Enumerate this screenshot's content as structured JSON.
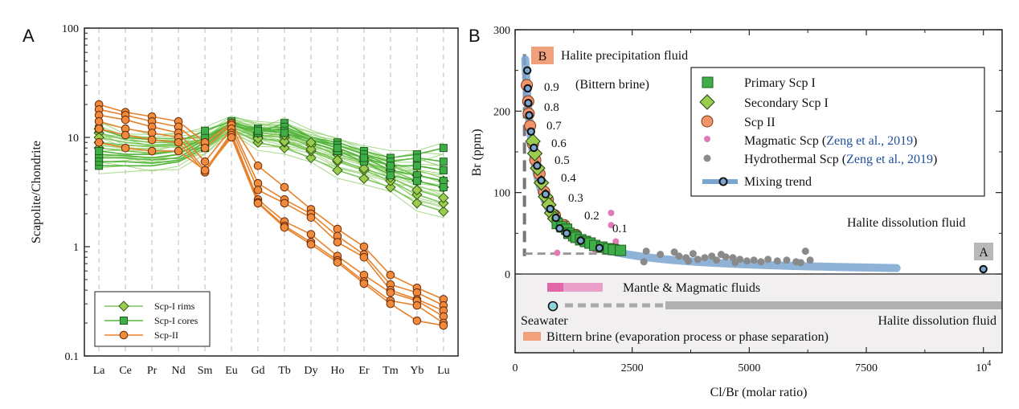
{
  "colors": {
    "green_dark": "#2e8a2e",
    "green_line": "#6cbf46",
    "green_fill": "#3fae49",
    "diamond_fill": "#9ccc4f",
    "orange_line": "#e8822b",
    "orange_fill": "#f08a3c",
    "scp2_fill": "#f2936b",
    "magmatic": "#e07ab8",
    "hydrothermal": "#8a8a8a",
    "mixing": "#7aa6cf",
    "bittern_bar": "#f0a07a",
    "dissolution_bar": "#b0b0b0",
    "panel_bg": "#f2eff1",
    "link_blue": "#1f4e9c"
  },
  "chart_data": [
    {
      "panel": "A",
      "type": "line",
      "ylabel": "Scapolite/Chondrite",
      "yscale": "log",
      "ylim": [
        0.1,
        100
      ],
      "yticks": [
        "0.1",
        "1",
        "10",
        "100"
      ],
      "categories": [
        "La",
        "Ce",
        "Pr",
        "Nd",
        "Sm",
        "Eu",
        "Gd",
        "Tb",
        "Dy",
        "Ho",
        "Er",
        "Tm",
        "Yb",
        "Lu"
      ],
      "grid": "vertical dashed",
      "legend_position": "bottom-left",
      "series": [
        {
          "name": "Scp-I rims",
          "marker": "diamond",
          "values": [
            [
              8,
              7.5,
              7.2,
              7.5,
              8,
              12,
              9,
              8,
              6.5,
              5,
              4.2,
              3.5,
              2.5,
              2.1
            ],
            [
              9,
              8.5,
              8.2,
              8.5,
              9,
              12.5,
              10,
              9,
              7.5,
              6,
              5,
              4,
              3,
              2.5
            ],
            [
              11,
              9.5,
              9,
              9,
              9.5,
              13,
              10.5,
              10,
              8.5,
              7,
              6,
              5,
              4,
              3.5
            ],
            [
              10,
              9,
              8.5,
              8.8,
              9,
              12.5,
              9.8,
              9.2,
              7.8,
              6.2,
              5.2,
              4.3,
              3.3,
              2.8
            ],
            [
              12,
              10.5,
              9.8,
              9.8,
              10,
              13,
              11,
              10.5,
              9,
              7.5,
              6.5,
              5.5,
              4.5,
              4
            ]
          ]
        },
        {
          "name": "Scp-I cores",
          "marker": "square",
          "values": [
            [
              5.5,
              5.5,
              5.5,
              6,
              8,
              13,
              11,
              13.5,
              10,
              9,
              7.5,
              6.5,
              7,
              8
            ],
            [
              6,
              6,
              5.8,
              6.2,
              8.5,
              13,
              11.5,
              12,
              9.5,
              8.5,
              7,
              6,
              6.5,
              6
            ],
            [
              6.5,
              6.5,
              6.2,
              6.5,
              9,
              13.5,
              12,
              12.5,
              10,
              8.5,
              7,
              5.5,
              5.5,
              5
            ],
            [
              7,
              6.8,
              6.5,
              7,
              9.5,
              13.5,
              12,
              11.5,
              9.5,
              8,
              6.5,
              5,
              4.5,
              4
            ],
            [
              7.5,
              7,
              7,
              7.5,
              10,
              13.5,
              12,
              11,
              9,
              7.5,
              6,
              4.5,
              4,
              3.5
            ],
            [
              12,
              10,
              9.5,
              9.2,
              11.5,
              14,
              11.5,
              11,
              9.5,
              8,
              6.5,
              5.5,
              5.5,
              5
            ]
          ]
        },
        {
          "name": "Scp-II",
          "marker": "circle",
          "values": [
            [
              20,
              17,
              15.5,
              14,
              9,
              13.5,
              5.5,
              3.5,
              2.2,
              1.45,
              1,
              0.55,
              0.42,
              0.33
            ],
            [
              18,
              16,
              14,
              12.5,
              8,
              13,
              3.8,
              2.7,
              2,
              1.25,
              0.85,
              0.45,
              0.38,
              0.29
            ],
            [
              16,
              14.5,
              12.5,
              11,
              6,
              12,
              3.3,
              2.5,
              1.85,
              1.1,
              0.8,
              0.4,
              0.33,
              0.26
            ],
            [
              14,
              12,
              11,
              10,
              5,
              11,
              2.7,
              1.7,
              1.3,
              0.82,
              0.55,
              0.38,
              0.32,
              0.23
            ],
            [
              12,
              10.5,
              9.5,
              9,
              4.8,
              10.5,
              2.55,
              1.55,
              1.1,
              0.75,
              0.48,
              0.32,
              0.29,
              0.2
            ],
            [
              9,
              8,
              7.5,
              7.5,
              5,
              10,
              2.5,
              1.5,
              1.05,
              0.72,
              0.46,
              0.3,
              0.21,
              0.19
            ]
          ]
        }
      ]
    },
    {
      "panel": "B",
      "type": "scatter",
      "xlabel": "Cl/Br (molar ratio)",
      "ylabel": "Br (ppm)",
      "xlim": [
        0,
        10400
      ],
      "ylim": [
        0,
        300
      ],
      "xticks": [
        "0",
        "2500",
        "5000",
        "7500",
        "10"
      ],
      "xticks_last_superscript": "4",
      "yticks": [
        "0",
        "100",
        "200",
        "300"
      ],
      "legend_position": "top-right",
      "series": [
        {
          "name": "Primary Scp I",
          "marker": "square",
          "points": [
            [
              900,
              62
            ],
            [
              1000,
              58
            ],
            [
              1100,
              55
            ],
            [
              1150,
              50
            ],
            [
              1250,
              47
            ],
            [
              1300,
              45
            ],
            [
              1400,
              42
            ],
            [
              1500,
              40
            ],
            [
              1600,
              38
            ],
            [
              1700,
              35
            ],
            [
              1850,
              33
            ],
            [
              2000,
              31
            ],
            [
              2100,
              30
            ],
            [
              2250,
              29
            ]
          ]
        },
        {
          "name": "Secondary Scp I",
          "marker": "diamond",
          "points": [
            [
              380,
              163
            ],
            [
              420,
              148
            ],
            [
              480,
              130
            ],
            [
              560,
              112
            ],
            [
              650,
              95
            ],
            [
              720,
              85
            ],
            [
              780,
              75
            ],
            [
              850,
              68
            ]
          ]
        },
        {
          "name": "Scp II",
          "marker": "circle",
          "points": [
            [
              250,
              232
            ],
            [
              280,
              212
            ],
            [
              290,
              197
            ],
            [
              320,
              182
            ],
            [
              380,
              160
            ],
            [
              430,
              140
            ],
            [
              520,
              123
            ],
            [
              620,
              101
            ],
            [
              700,
              91
            ],
            [
              850,
              72
            ],
            [
              1050,
              60
            ],
            [
              1300,
              48
            ],
            [
              1550,
              39
            ]
          ]
        },
        {
          "name": "Magmatic Scp",
          "marker": "dot",
          "points": [
            [
              2050,
              75
            ],
            [
              2050,
              60
            ],
            [
              2150,
              40
            ],
            [
              1950,
              34
            ],
            [
              900,
              26
            ],
            [
              1700,
              30
            ]
          ]
        },
        {
          "name": "Hydrothermal Scp",
          "marker": "dot",
          "points": [
            [
              2800,
              28
            ],
            [
              2750,
              15
            ],
            [
              3100,
              24
            ],
            [
              3400,
              27
            ],
            [
              3500,
              22
            ],
            [
              3650,
              20
            ],
            [
              3800,
              25
            ],
            [
              3900,
              18
            ],
            [
              4050,
              20
            ],
            [
              4200,
              22
            ],
            [
              4300,
              17
            ],
            [
              4500,
              21
            ],
            [
              4650,
              20
            ],
            [
              4800,
              18
            ],
            [
              4950,
              16
            ],
            [
              5100,
              17
            ],
            [
              5250,
              15
            ],
            [
              5400,
              18
            ],
            [
              5600,
              16
            ],
            [
              5800,
              17
            ],
            [
              6000,
              15
            ],
            [
              6100,
              14
            ],
            [
              6200,
              28
            ],
            [
              6300,
              17
            ],
            [
              4400,
              24
            ],
            [
              3700,
              16
            ],
            [
              4700,
              14
            ]
          ]
        },
        {
          "name": "Mixing trend",
          "marker": "ring",
          "points": [
            [
              260,
              250
            ],
            [
              270,
              228
            ],
            [
              280,
              210
            ],
            [
              300,
              195
            ],
            [
              340,
              175
            ],
            [
              400,
              155
            ],
            [
              470,
              133
            ],
            [
              560,
              115
            ],
            [
              650,
              98
            ],
            [
              750,
              80
            ],
            [
              870,
              69
            ],
            [
              950,
              56
            ],
            [
              1100,
              50
            ],
            [
              1400,
              41
            ],
            [
              1800,
              32
            ],
            [
              10000,
              6
            ]
          ]
        }
      ],
      "mixing_labels": [
        "0.9",
        "0.8",
        "0.7",
        "0.6",
        "0.5",
        "0.4",
        "0.3",
        "0.2",
        "0.1"
      ],
      "annotations": {
        "halite_precip": "Halite precipitation fluid",
        "bittern": "(Bittern brine)",
        "halite_diss": "Halite dissolution fluid",
        "endmember_b": "B",
        "endmember_a": "A"
      },
      "bottom_panel": {
        "mantle": "Mantle & Magmatic fluids",
        "seawater": "Seawater",
        "halite_diss": "Halite dissolution fluid",
        "bittern_prefix": "Bittern brine (evaporation process or phase separation)"
      }
    }
  ],
  "legend_a": [
    "Scp-I rims",
    "Scp-I cores",
    "Scp-II"
  ],
  "legend_b": {
    "primary": "Primary Scp I",
    "secondary": "Secondary Scp I",
    "scp2": "Scp II",
    "magmatic_prefix": "Magmatic Scp (",
    "magmatic_ref": "Zeng et al., 2019",
    "hydro_prefix": "Hydrothermal Scp (",
    "hydro_ref": "Zeng et al., 2019",
    "suffix": ")",
    "mixing": "Mixing trend"
  },
  "panel_letters": [
    "A",
    "B"
  ]
}
